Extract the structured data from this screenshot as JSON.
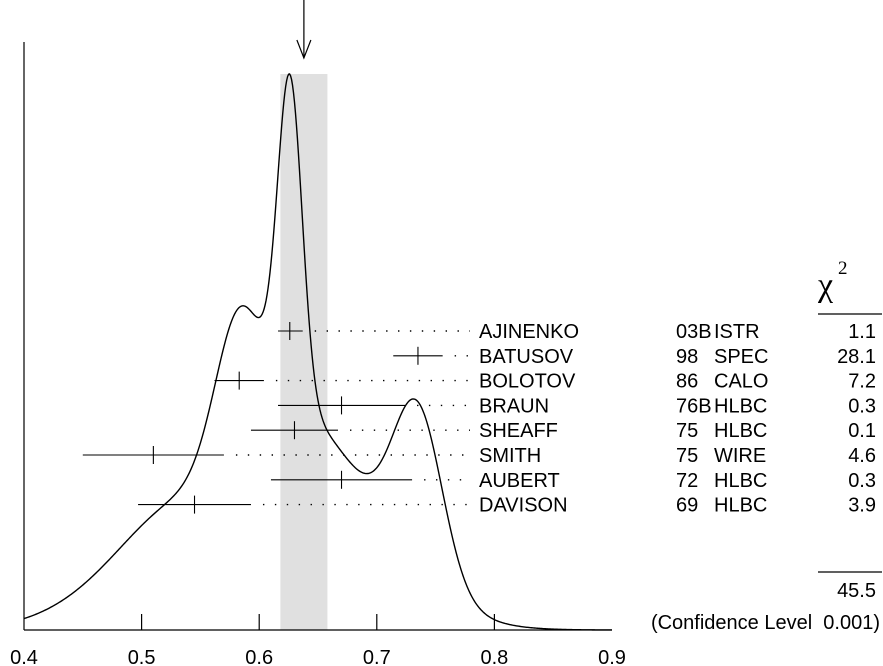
{
  "chart_data": {
    "type": "ideogram",
    "title": "",
    "xlabel": "",
    "ylabel": "",
    "xlim": [
      0.4,
      0.9
    ],
    "x_ticks": [
      "0.4",
      "0.5",
      "0.6",
      "0.7",
      "0.8",
      "0.9"
    ],
    "band": [
      0.618,
      0.658
    ],
    "arrow_x": 0.638,
    "chi2_header": {
      "symbol": "χ",
      "exponent": "2"
    },
    "measurements": [
      {
        "author": "AJINENKO",
        "year": "03B",
        "technique": "ISTR",
        "value": 0.626,
        "low": 0.616,
        "high": 0.637,
        "chi2": "1.1"
      },
      {
        "author": "BATUSOV",
        "year": "98",
        "technique": "SPEC",
        "value": 0.735,
        "low": 0.714,
        "high": 0.756,
        "chi2": "28.1"
      },
      {
        "author": "BOLOTOV",
        "year": "86",
        "technique": "CALO",
        "value": 0.583,
        "low": 0.562,
        "high": 0.604,
        "chi2": "7.2"
      },
      {
        "author": "BRAUN",
        "year": "76B",
        "technique": "HLBC",
        "value": 0.67,
        "low": 0.616,
        "high": 0.724,
        "chi2": "0.3"
      },
      {
        "author": "SHEAFF",
        "year": "75",
        "technique": "HLBC",
        "value": 0.63,
        "low": 0.593,
        "high": 0.667,
        "chi2": "0.1"
      },
      {
        "author": "SMITH",
        "year": "75",
        "technique": "WIRE",
        "value": 0.51,
        "low": 0.45,
        "high": 0.57,
        "chi2": "4.6"
      },
      {
        "author": "AUBERT",
        "year": "72",
        "technique": "HLBC",
        "value": 0.67,
        "low": 0.61,
        "high": 0.73,
        "chi2": "0.3"
      },
      {
        "author": "DAVISON",
        "year": "69",
        "technique": "HLBC",
        "value": 0.545,
        "low": 0.497,
        "high": 0.593,
        "chi2": "3.9"
      }
    ],
    "chi2_total": "45.5",
    "confidence_level": "(Confidence Level  0.001)"
  }
}
